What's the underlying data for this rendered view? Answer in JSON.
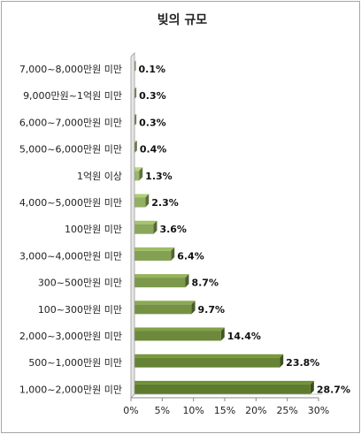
{
  "chart_data": {
    "type": "bar",
    "orientation": "horizontal",
    "title": "빚의 규모",
    "categories": [
      "7,000~8,000만원 미만",
      "9,000만원~1억원 미만",
      "6,000~7,000만원 미만",
      "5,000~6,000만원 미만",
      "1억원 이상",
      "4,000~5,000만원 미만",
      "100만원 미만",
      "3,000~4,000만원 미만",
      "300~500만원 미만",
      "100~300만원 미만",
      "2,000~3,000만원 미만",
      "500~1,000만원 미만",
      "1,000~2,000만원 미만"
    ],
    "values": [
      0.1,
      0.3,
      0.3,
      0.4,
      1.3,
      2.3,
      3.6,
      6.4,
      8.7,
      9.7,
      14.4,
      23.8,
      28.7
    ],
    "value_labels": [
      "0.1%",
      "0.3%",
      "0.3%",
      "0.4%",
      "1.3%",
      "2.3%",
      "3.6%",
      "6.4%",
      "8.7%",
      "9.7%",
      "14.4%",
      "23.8%",
      "28.7%"
    ],
    "xlim": [
      0,
      30
    ],
    "xticks": [
      0,
      5,
      10,
      15,
      20,
      25,
      30
    ],
    "xtick_labels": [
      "0%",
      "5%",
      "10%",
      "15%",
      "20%",
      "25%",
      "30%"
    ],
    "grid": false,
    "legend": "none",
    "colors": {
      "light": "#b8d48a",
      "dark": "#5e7a2c",
      "axis": "#888888"
    }
  }
}
